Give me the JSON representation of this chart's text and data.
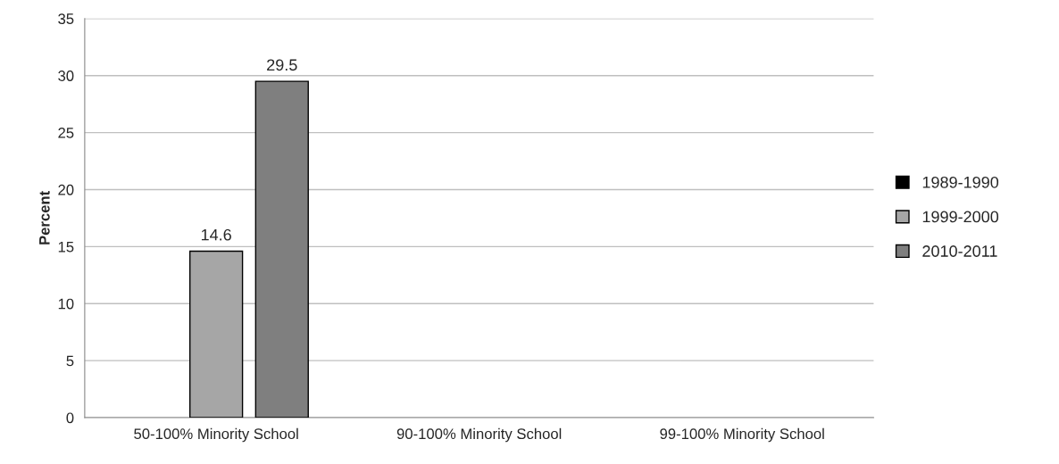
{
  "chart_data": {
    "type": "bar",
    "ylabel": "Percent",
    "categories": [
      "50-100% Minority School",
      "90-100% Minority School",
      "99-100% Minority School"
    ],
    "series": [
      {
        "name": "1989-1990",
        "color": "#000000",
        "values": [
          null,
          null,
          null
        ]
      },
      {
        "name": "1999-2000",
        "color": "#a6a6a6",
        "values": [
          14.6,
          null,
          null
        ]
      },
      {
        "name": "2010-2011",
        "color": "#7f7f7f",
        "values": [
          29.5,
          null,
          null
        ]
      }
    ],
    "ylim": [
      0,
      35
    ],
    "yticks": [
      0,
      5,
      10,
      15,
      20,
      25,
      30,
      35
    ],
    "grid": "y",
    "legend": "right",
    "data_labels": true
  }
}
